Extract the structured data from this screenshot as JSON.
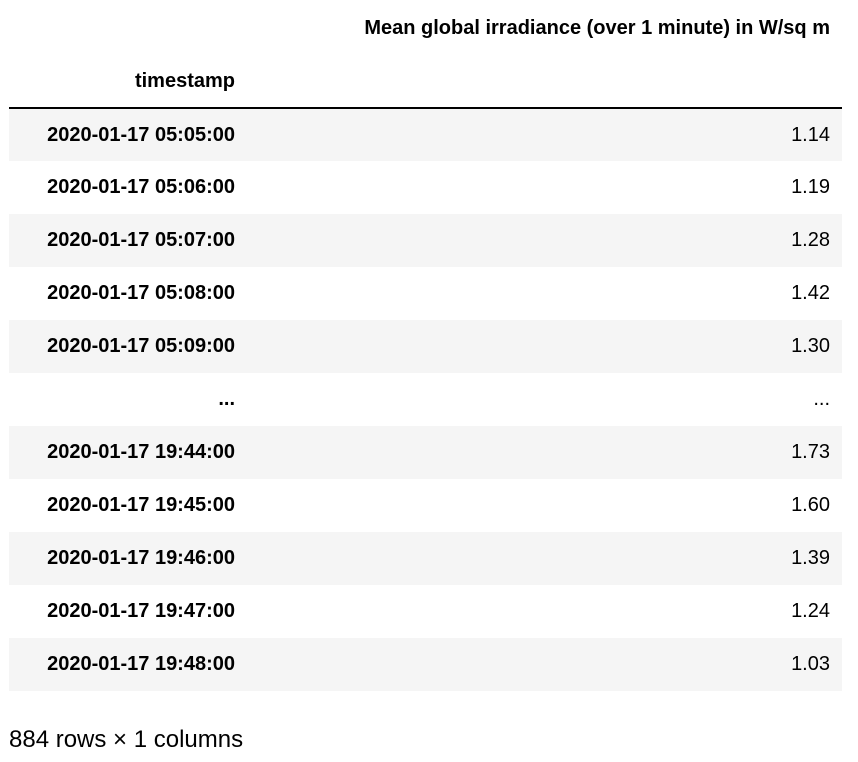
{
  "table": {
    "column_header": "Mean global irradiance (over 1 minute) in W/sq m",
    "index_name": "timestamp",
    "rows": [
      {
        "index": "2020-01-17 05:05:00",
        "value": "1.14"
      },
      {
        "index": "2020-01-17 05:06:00",
        "value": "1.19"
      },
      {
        "index": "2020-01-17 05:07:00",
        "value": "1.28"
      },
      {
        "index": "2020-01-17 05:08:00",
        "value": "1.42"
      },
      {
        "index": "2020-01-17 05:09:00",
        "value": "1.30"
      },
      {
        "index": "...",
        "value": "..."
      },
      {
        "index": "2020-01-17 19:44:00",
        "value": "1.73"
      },
      {
        "index": "2020-01-17 19:45:00",
        "value": "1.60"
      },
      {
        "index": "2020-01-17 19:46:00",
        "value": "1.39"
      },
      {
        "index": "2020-01-17 19:47:00",
        "value": "1.24"
      },
      {
        "index": "2020-01-17 19:48:00",
        "value": "1.03"
      }
    ],
    "stripe_color": "#f5f5f5"
  },
  "footer": "884 rows × 1 columns"
}
